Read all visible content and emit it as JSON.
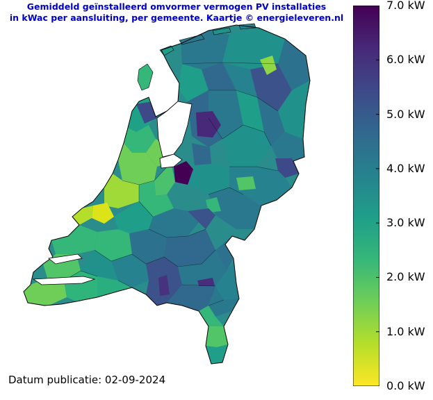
{
  "header": {
    "title_line1": "Gemiddeld geïnstalleerd omvormer vermogen PV installaties",
    "title_line2": "in kWac per aansluiting, per gemeente. Kaartje © energieleveren.nl"
  },
  "footer": {
    "date_text": "Datum publicatie: 02-09-2024"
  },
  "colorbar": {
    "min": 0,
    "max": 7,
    "unit": "kW",
    "ticks": [
      {
        "value": 0,
        "label": "0.0 kW"
      },
      {
        "value": 1,
        "label": "1.0 kW"
      },
      {
        "value": 2,
        "label": "2.0 kW"
      },
      {
        "value": 3,
        "label": "3.0 kW"
      },
      {
        "value": 4,
        "label": "4.0 kW"
      },
      {
        "value": 5,
        "label": "5.0 kW"
      },
      {
        "value": 6,
        "label": "6.0 kW"
      },
      {
        "value": 7,
        "label": "7.0 kW"
      }
    ],
    "colormap": "viridis",
    "stops": [
      "#fde725",
      "#b5de2b",
      "#6ece58",
      "#35b779",
      "#1f9e89",
      "#26828e",
      "#31688e",
      "#3e4989",
      "#482878",
      "#440154"
    ]
  }
}
